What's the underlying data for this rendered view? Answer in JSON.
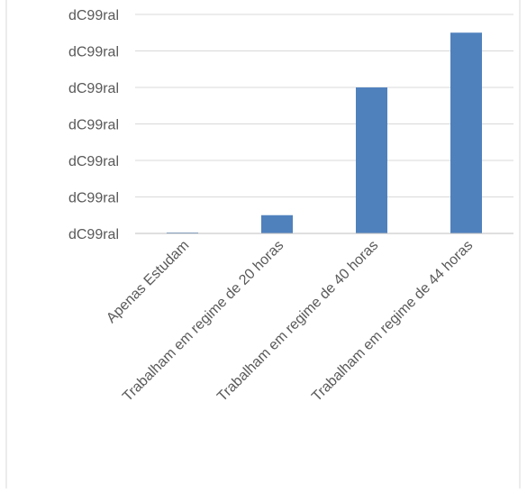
{
  "chart_data": {
    "type": "bar",
    "title": "",
    "xlabel": "",
    "ylabel": "",
    "categories": [
      "Apenas Estudam",
      "Trabalham em regime de 20 horas",
      "Trabalham em regime de 40 horas",
      "Trabalham em regime de 44 horas"
    ],
    "values": [
      0.05,
      1.0,
      8.0,
      11.0
    ],
    "ylim": [
      0,
      12
    ],
    "y_tick_values": [
      0,
      2,
      4,
      6,
      8,
      10,
      12
    ],
    "y_tick_labels": [
      "dC99ral",
      "dC99ral",
      "dC99ral",
      "dC99ral",
      "dC99ral",
      "dC99ral",
      "dC99ral"
    ],
    "grid": true,
    "legend": "none",
    "colors": {
      "bar": "#4F81BD",
      "grid": "#D9D9D9",
      "axis": "#BFBFBF",
      "text": "#595959",
      "border": "#D9D9D9"
    }
  }
}
